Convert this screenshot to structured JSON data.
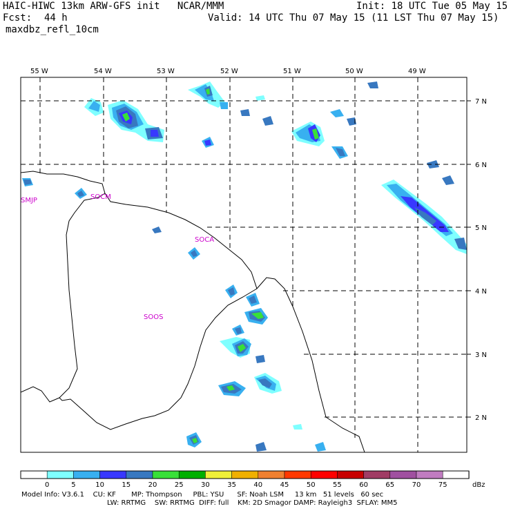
{
  "header": {
    "title": "HAIC-HIWC 13km ARW-GFS init   NCAR/MMM",
    "init": "Init: 18 UTC Tue 05 May 15",
    "fcst_label": "Fcst:",
    "fcst_value": "44 h",
    "valid": "Valid: 14 UTC Thu 07 May 15 (11 LST Thu 07 May 15)",
    "field": "maxdbz_refl_10cm"
  },
  "map": {
    "lon_labels": [
      "55 W",
      "54 W",
      "53 W",
      "52 W",
      "51 W",
      "50 W",
      "49 W"
    ],
    "lat_labels": [
      "7 N",
      "6 N",
      "5 N",
      "4 N",
      "3 N",
      "2 N"
    ],
    "stations": [
      "SMJP",
      "SOCM",
      "SOCA",
      "SOOS"
    ],
    "station_color": "#cc00cc"
  },
  "colorbar": {
    "labels": [
      "0",
      "5",
      "10",
      "15",
      "20",
      "25",
      "30",
      "35",
      "40",
      "45",
      "50",
      "55",
      "60",
      "65",
      "70",
      "75"
    ],
    "unit": "dBz",
    "colors": [
      "#ffffff",
      "#7fffff",
      "#38b0f0",
      "#3838ff",
      "#3878c0",
      "#38e038",
      "#00b000",
      "#f0f038",
      "#f0b000",
      "#f08030",
      "#ff3800",
      "#ff0000",
      "#c80000",
      "#a03c64",
      "#a050a0",
      "#c07cc0",
      "#ffffff"
    ]
  },
  "footer": {
    "line1": "Model Info: V3.6.1    CU: KF       MP: Thompson     PBL: YSU      SF: Noah LSM     13 km   51 levels   60 sec",
    "line2": "LW: RRTMG    SW: RRTMG  DIFF: full    KM: 2D Smagor DAMP: Rayleigh3  SFLAY: MM5"
  }
}
